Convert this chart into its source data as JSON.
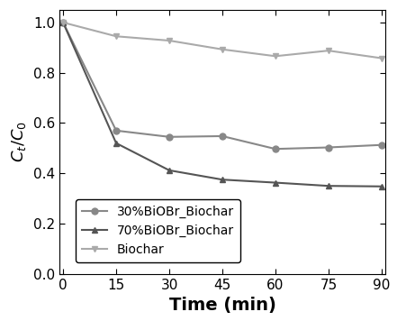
{
  "time": [
    0,
    15,
    30,
    45,
    60,
    75,
    90
  ],
  "series": [
    {
      "label": "30%BiOBr_Biochar",
      "values": [
        1.0,
        0.57,
        0.545,
        0.548,
        0.497,
        0.503,
        0.513
      ],
      "color": "#888888",
      "marker": "o",
      "markersize": 5,
      "linewidth": 1.5
    },
    {
      "label": "70%BiOBr_Biochar",
      "values": [
        1.0,
        0.52,
        0.412,
        0.375,
        0.363,
        0.35,
        0.348
      ],
      "color": "#555555",
      "marker": "^",
      "markersize": 5,
      "linewidth": 1.5
    },
    {
      "label": "Biochar",
      "values": [
        1.0,
        0.945,
        0.928,
        0.893,
        0.866,
        0.888,
        0.858
      ],
      "color": "#aaaaaa",
      "marker": "v",
      "markersize": 5,
      "linewidth": 1.5
    }
  ],
  "xlabel": "Time (min)",
  "ylabel": "$C_t$/$C_0$",
  "xlim": [
    -1,
    91
  ],
  "ylim": [
    0.0,
    1.05
  ],
  "xticks": [
    0,
    15,
    30,
    45,
    60,
    75,
    90
  ],
  "yticks": [
    0.0,
    0.2,
    0.4,
    0.6,
    0.8,
    1.0
  ],
  "legend_loc": "lower left",
  "xlabel_fontsize": 14,
  "ylabel_fontsize": 13,
  "tick_fontsize": 11,
  "legend_fontsize": 10
}
